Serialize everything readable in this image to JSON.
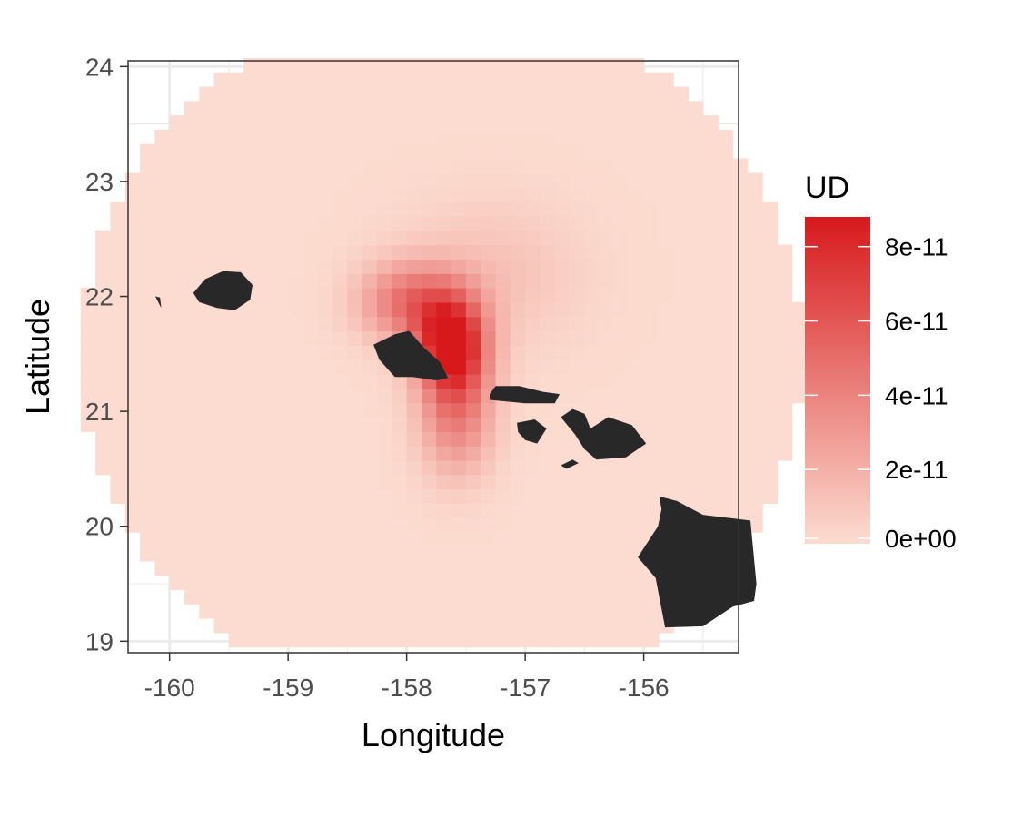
{
  "chart_data": {
    "type": "heatmap",
    "title": "",
    "xlabel": "Longitude",
    "ylabel": "Latitude",
    "xlim": [
      -160.35,
      -155.2
    ],
    "ylim": [
      18.9,
      24.05
    ],
    "x_ticks": [
      -160,
      -159,
      -158,
      -157,
      -156
    ],
    "x_tick_labels": [
      "-160",
      "-159",
      "-158",
      "-157",
      "-156"
    ],
    "y_ticks": [
      19,
      20,
      21,
      22,
      23,
      24
    ],
    "y_tick_labels": [
      "19",
      "20",
      "21",
      "22",
      "23",
      "24"
    ],
    "grid": true,
    "panel_border": true,
    "legend": {
      "title": "UD",
      "placement": "right",
      "min": 0,
      "max": 8.8e-11,
      "breaks": [
        0,
        2e-11,
        4e-11,
        6e-11,
        8e-11
      ],
      "labels": [
        "0e+00",
        "2e-11",
        "4e-11",
        "6e-11",
        "8e-11"
      ],
      "low_color": "#fcdcd0",
      "high_color": "#d7191c"
    },
    "utilization_distribution": {
      "center_lon": -157.7,
      "center_lat": 21.5,
      "radius_deg": 3.05,
      "cell_size_deg": 0.125,
      "background_value": 0,
      "hotspots": [
        {
          "lon": -157.62,
          "lat": 21.58,
          "peak": 8.8e-11,
          "sx": 0.2,
          "sy": 0.28
        },
        {
          "lon": -157.95,
          "lat": 21.95,
          "peak": 4.6e-11,
          "sx": 0.3,
          "sy": 0.24
        },
        {
          "lon": -157.58,
          "lat": 21.0,
          "peak": 4.2e-11,
          "sx": 0.22,
          "sy": 0.38
        },
        {
          "lon": -157.3,
          "lat": 22.2,
          "peak": 1.2e-11,
          "sx": 0.55,
          "sy": 0.45
        }
      ]
    },
    "land_color": "#282828",
    "islands": [
      {
        "name": "Niihau",
        "points": [
          [
            -160.07,
            21.9
          ],
          [
            -160.12,
            22.0
          ],
          [
            -160.08,
            21.99
          ]
        ]
      },
      {
        "name": "Kauai",
        "points": [
          [
            -159.8,
            22.03
          ],
          [
            -159.7,
            22.15
          ],
          [
            -159.55,
            22.22
          ],
          [
            -159.4,
            22.21
          ],
          [
            -159.3,
            22.1
          ],
          [
            -159.32,
            21.97
          ],
          [
            -159.45,
            21.88
          ],
          [
            -159.6,
            21.9
          ],
          [
            -159.75,
            21.95
          ]
        ]
      },
      {
        "name": "Oahu",
        "points": [
          [
            -158.28,
            21.58
          ],
          [
            -158.1,
            21.67
          ],
          [
            -157.98,
            21.7
          ],
          [
            -157.85,
            21.55
          ],
          [
            -157.72,
            21.43
          ],
          [
            -157.65,
            21.29
          ],
          [
            -157.75,
            21.27
          ],
          [
            -157.95,
            21.3
          ],
          [
            -158.1,
            21.3
          ],
          [
            -158.23,
            21.45
          ]
        ]
      },
      {
        "name": "Molokai",
        "points": [
          [
            -157.3,
            21.15
          ],
          [
            -157.3,
            21.1
          ],
          [
            -157.0,
            21.07
          ],
          [
            -156.75,
            21.07
          ],
          [
            -156.71,
            21.15
          ],
          [
            -156.85,
            21.17
          ],
          [
            -157.05,
            21.22
          ],
          [
            -157.25,
            21.22
          ]
        ]
      },
      {
        "name": "Lanai",
        "points": [
          [
            -157.07,
            20.9
          ],
          [
            -156.92,
            20.93
          ],
          [
            -156.82,
            20.85
          ],
          [
            -156.9,
            20.72
          ],
          [
            -157.0,
            20.75
          ],
          [
            -157.06,
            20.82
          ]
        ]
      },
      {
        "name": "Maui",
        "points": [
          [
            -156.7,
            20.95
          ],
          [
            -156.6,
            21.02
          ],
          [
            -156.5,
            20.98
          ],
          [
            -156.45,
            20.85
          ],
          [
            -156.3,
            20.95
          ],
          [
            -156.1,
            20.88
          ],
          [
            -155.98,
            20.72
          ],
          [
            -156.15,
            20.6
          ],
          [
            -156.4,
            20.58
          ],
          [
            -156.5,
            20.67
          ],
          [
            -156.58,
            20.8
          ]
        ]
      },
      {
        "name": "Kahoolawe",
        "points": [
          [
            -156.7,
            20.53
          ],
          [
            -156.6,
            20.58
          ],
          [
            -156.55,
            20.55
          ],
          [
            -156.65,
            20.5
          ]
        ]
      },
      {
        "name": "Hawaii",
        "points": [
          [
            -155.87,
            20.26
          ],
          [
            -155.72,
            20.22
          ],
          [
            -155.5,
            20.1
          ],
          [
            -155.1,
            20.05
          ],
          [
            -155.05,
            19.5
          ],
          [
            -155.07,
            19.35
          ],
          [
            -155.25,
            19.3
          ],
          [
            -155.5,
            19.13
          ],
          [
            -155.82,
            19.12
          ],
          [
            -155.9,
            19.55
          ],
          [
            -156.05,
            19.73
          ],
          [
            -155.88,
            20.0
          ],
          [
            -155.85,
            20.15
          ]
        ]
      }
    ]
  }
}
